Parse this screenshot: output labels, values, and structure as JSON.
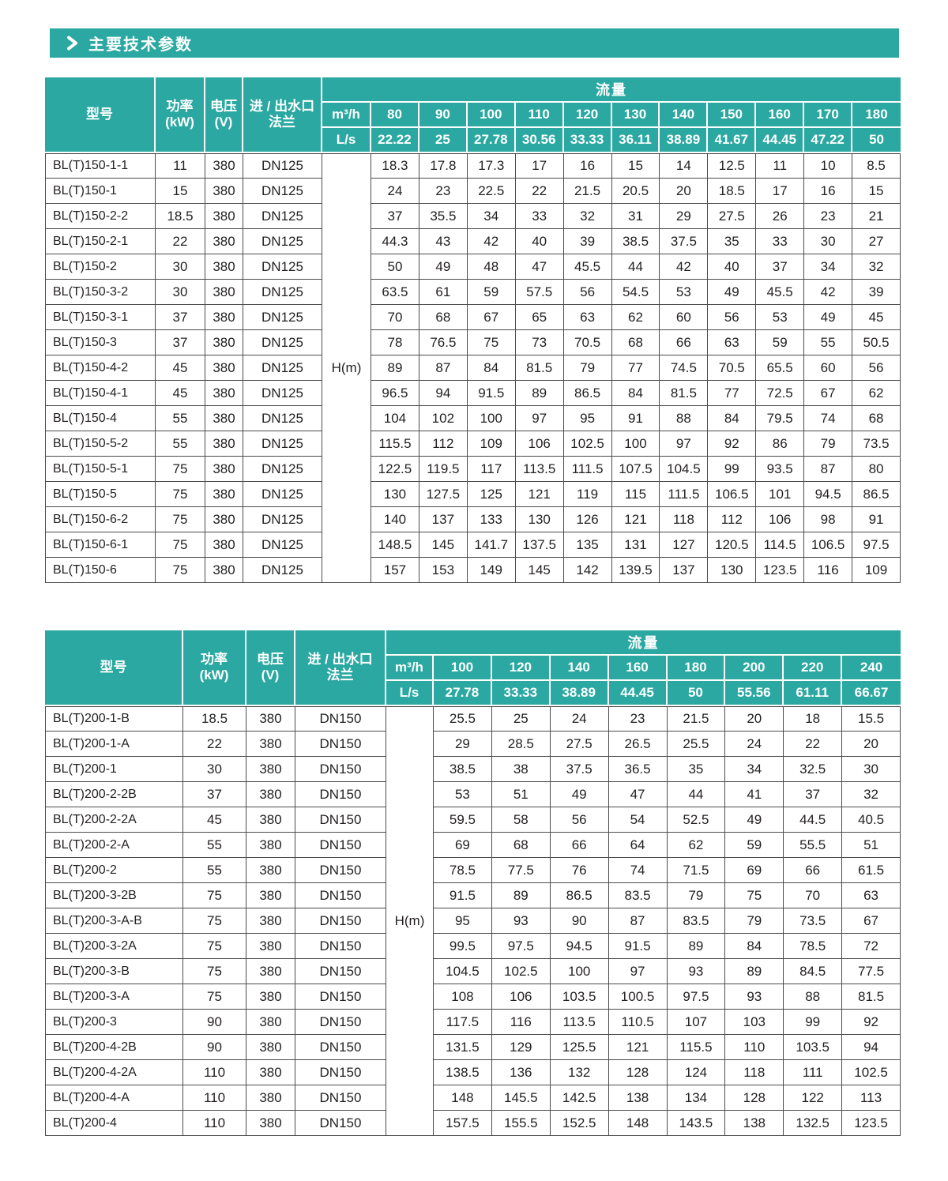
{
  "title": "主要技术参数",
  "colors": {
    "accent": "#2aa8a1",
    "border": "#4b4b4d",
    "text": "#231f20"
  },
  "tables": [
    {
      "header": {
        "model": "型号",
        "power": "功率\n(kW)",
        "voltage": "电压\n(V)",
        "flange": "进 / 出水口\n法兰",
        "flow": "流量",
        "unit_top": "m³/h",
        "unit_bottom": "L/s",
        "flow_top": [
          "80",
          "90",
          "100",
          "110",
          "120",
          "130",
          "140",
          "150",
          "160",
          "170",
          "180"
        ],
        "flow_bottom": [
          "22.22",
          "25",
          "27.78",
          "30.56",
          "33.33",
          "36.11",
          "38.89",
          "41.67",
          "44.45",
          "47.22",
          "50"
        ]
      },
      "head_unit": "H(m)",
      "rows": [
        {
          "model": "BL(T)150-1-1",
          "power": "11",
          "voltage": "380",
          "flange": "DN125",
          "values": [
            "18.3",
            "17.8",
            "17.3",
            "17",
            "16",
            "15",
            "14",
            "12.5",
            "11",
            "10",
            "8.5"
          ]
        },
        {
          "model": "BL(T)150-1",
          "power": "15",
          "voltage": "380",
          "flange": "DN125",
          "values": [
            "24",
            "23",
            "22.5",
            "22",
            "21.5",
            "20.5",
            "20",
            "18.5",
            "17",
            "16",
            "15"
          ]
        },
        {
          "model": "BL(T)150-2-2",
          "power": "18.5",
          "voltage": "380",
          "flange": "DN125",
          "values": [
            "37",
            "35.5",
            "34",
            "33",
            "32",
            "31",
            "29",
            "27.5",
            "26",
            "23",
            "21"
          ]
        },
        {
          "model": "BL(T)150-2-1",
          "power": "22",
          "voltage": "380",
          "flange": "DN125",
          "values": [
            "44.3",
            "43",
            "42",
            "40",
            "39",
            "38.5",
            "37.5",
            "35",
            "33",
            "30",
            "27"
          ]
        },
        {
          "model": "BL(T)150-2",
          "power": "30",
          "voltage": "380",
          "flange": "DN125",
          "values": [
            "50",
            "49",
            "48",
            "47",
            "45.5",
            "44",
            "42",
            "40",
            "37",
            "34",
            "32"
          ]
        },
        {
          "model": "BL(T)150-3-2",
          "power": "30",
          "voltage": "380",
          "flange": "DN125",
          "values": [
            "63.5",
            "61",
            "59",
            "57.5",
            "56",
            "54.5",
            "53",
            "49",
            "45.5",
            "42",
            "39"
          ]
        },
        {
          "model": "BL(T)150-3-1",
          "power": "37",
          "voltage": "380",
          "flange": "DN125",
          "values": [
            "70",
            "68",
            "67",
            "65",
            "63",
            "62",
            "60",
            "56",
            "53",
            "49",
            "45"
          ]
        },
        {
          "model": "BL(T)150-3",
          "power": "37",
          "voltage": "380",
          "flange": "DN125",
          "values": [
            "78",
            "76.5",
            "75",
            "73",
            "70.5",
            "68",
            "66",
            "63",
            "59",
            "55",
            "50.5"
          ]
        },
        {
          "model": "BL(T)150-4-2",
          "power": "45",
          "voltage": "380",
          "flange": "DN125",
          "values": [
            "89",
            "87",
            "84",
            "81.5",
            "79",
            "77",
            "74.5",
            "70.5",
            "65.5",
            "60",
            "56"
          ]
        },
        {
          "model": "BL(T)150-4-1",
          "power": "45",
          "voltage": "380",
          "flange": "DN125",
          "values": [
            "96.5",
            "94",
            "91.5",
            "89",
            "86.5",
            "84",
            "81.5",
            "77",
            "72.5",
            "67",
            "62"
          ]
        },
        {
          "model": "BL(T)150-4",
          "power": "55",
          "voltage": "380",
          "flange": "DN125",
          "values": [
            "104",
            "102",
            "100",
            "97",
            "95",
            "91",
            "88",
            "84",
            "79.5",
            "74",
            "68"
          ]
        },
        {
          "model": "BL(T)150-5-2",
          "power": "55",
          "voltage": "380",
          "flange": "DN125",
          "values": [
            "115.5",
            "112",
            "109",
            "106",
            "102.5",
            "100",
            "97",
            "92",
            "86",
            "79",
            "73.5"
          ]
        },
        {
          "model": "BL(T)150-5-1",
          "power": "75",
          "voltage": "380",
          "flange": "DN125",
          "values": [
            "122.5",
            "119.5",
            "117",
            "113.5",
            "111.5",
            "107.5",
            "104.5",
            "99",
            "93.5",
            "87",
            "80"
          ]
        },
        {
          "model": "BL(T)150-5",
          "power": "75",
          "voltage": "380",
          "flange": "DN125",
          "values": [
            "130",
            "127.5",
            "125",
            "121",
            "119",
            "115",
            "111.5",
            "106.5",
            "101",
            "94.5",
            "86.5"
          ]
        },
        {
          "model": "BL(T)150-6-2",
          "power": "75",
          "voltage": "380",
          "flange": "DN125",
          "values": [
            "140",
            "137",
            "133",
            "130",
            "126",
            "121",
            "118",
            "112",
            "106",
            "98",
            "91"
          ]
        },
        {
          "model": "BL(T)150-6-1",
          "power": "75",
          "voltage": "380",
          "flange": "DN125",
          "values": [
            "148.5",
            "145",
            "141.7",
            "137.5",
            "135",
            "131",
            "127",
            "120.5",
            "114.5",
            "106.5",
            "97.5"
          ]
        },
        {
          "model": "BL(T)150-6",
          "power": "75",
          "voltage": "380",
          "flange": "DN125",
          "values": [
            "157",
            "153",
            "149",
            "145",
            "142",
            "139.5",
            "137",
            "130",
            "123.5",
            "116",
            "109"
          ]
        }
      ]
    },
    {
      "header": {
        "model": "型号",
        "power": "功率\n(kW)",
        "voltage": "电压\n(V)",
        "flange": "进 / 出水口\n法兰",
        "flow": "流量",
        "unit_top": "m³/h",
        "unit_bottom": "L/s",
        "flow_top": [
          "100",
          "120",
          "140",
          "160",
          "180",
          "200",
          "220",
          "240"
        ],
        "flow_bottom": [
          "27.78",
          "33.33",
          "38.89",
          "44.45",
          "50",
          "55.56",
          "61.11",
          "66.67"
        ]
      },
      "head_unit": "H(m)",
      "rows": [
        {
          "model": "BL(T)200-1-B",
          "power": "18.5",
          "voltage": "380",
          "flange": "DN150",
          "values": [
            "25.5",
            "25",
            "24",
            "23",
            "21.5",
            "20",
            "18",
            "15.5"
          ]
        },
        {
          "model": "BL(T)200-1-A",
          "power": "22",
          "voltage": "380",
          "flange": "DN150",
          "values": [
            "29",
            "28.5",
            "27.5",
            "26.5",
            "25.5",
            "24",
            "22",
            "20"
          ]
        },
        {
          "model": "BL(T)200-1",
          "power": "30",
          "voltage": "380",
          "flange": "DN150",
          "values": [
            "38.5",
            "38",
            "37.5",
            "36.5",
            "35",
            "34",
            "32.5",
            "30"
          ]
        },
        {
          "model": "BL(T)200-2-2B",
          "power": "37",
          "voltage": "380",
          "flange": "DN150",
          "values": [
            "53",
            "51",
            "49",
            "47",
            "44",
            "41",
            "37",
            "32"
          ]
        },
        {
          "model": "BL(T)200-2-2A",
          "power": "45",
          "voltage": "380",
          "flange": "DN150",
          "values": [
            "59.5",
            "58",
            "56",
            "54",
            "52.5",
            "49",
            "44.5",
            "40.5"
          ]
        },
        {
          "model": "BL(T)200-2-A",
          "power": "55",
          "voltage": "380",
          "flange": "DN150",
          "values": [
            "69",
            "68",
            "66",
            "64",
            "62",
            "59",
            "55.5",
            "51"
          ]
        },
        {
          "model": "BL(T)200-2",
          "power": "55",
          "voltage": "380",
          "flange": "DN150",
          "values": [
            "78.5",
            "77.5",
            "76",
            "74",
            "71.5",
            "69",
            "66",
            "61.5"
          ]
        },
        {
          "model": "BL(T)200-3-2B",
          "power": "75",
          "voltage": "380",
          "flange": "DN150",
          "values": [
            "91.5",
            "89",
            "86.5",
            "83.5",
            "79",
            "75",
            "70",
            "63"
          ]
        },
        {
          "model": "BL(T)200-3-A-B",
          "power": "75",
          "voltage": "380",
          "flange": "DN150",
          "values": [
            "95",
            "93",
            "90",
            "87",
            "83.5",
            "79",
            "73.5",
            "67"
          ]
        },
        {
          "model": "BL(T)200-3-2A",
          "power": "75",
          "voltage": "380",
          "flange": "DN150",
          "values": [
            "99.5",
            "97.5",
            "94.5",
            "91.5",
            "89",
            "84",
            "78.5",
            "72"
          ]
        },
        {
          "model": "BL(T)200-3-B",
          "power": "75",
          "voltage": "380",
          "flange": "DN150",
          "values": [
            "104.5",
            "102.5",
            "100",
            "97",
            "93",
            "89",
            "84.5",
            "77.5"
          ]
        },
        {
          "model": "BL(T)200-3-A",
          "power": "75",
          "voltage": "380",
          "flange": "DN150",
          "values": [
            "108",
            "106",
            "103.5",
            "100.5",
            "97.5",
            "93",
            "88",
            "81.5"
          ]
        },
        {
          "model": "BL(T)200-3",
          "power": "90",
          "voltage": "380",
          "flange": "DN150",
          "values": [
            "117.5",
            "116",
            "113.5",
            "110.5",
            "107",
            "103",
            "99",
            "92"
          ]
        },
        {
          "model": "BL(T)200-4-2B",
          "power": "90",
          "voltage": "380",
          "flange": "DN150",
          "values": [
            "131.5",
            "129",
            "125.5",
            "121",
            "115.5",
            "110",
            "103.5",
            "94"
          ]
        },
        {
          "model": "BL(T)200-4-2A",
          "power": "110",
          "voltage": "380",
          "flange": "DN150",
          "values": [
            "138.5",
            "136",
            "132",
            "128",
            "124",
            "118",
            "111",
            "102.5"
          ]
        },
        {
          "model": "BL(T)200-4-A",
          "power": "110",
          "voltage": "380",
          "flange": "DN150",
          "values": [
            "148",
            "145.5",
            "142.5",
            "138",
            "134",
            "128",
            "122",
            "113"
          ]
        },
        {
          "model": "BL(T)200-4",
          "power": "110",
          "voltage": "380",
          "flange": "DN150",
          "values": [
            "157.5",
            "155.5",
            "152.5",
            "148",
            "143.5",
            "138",
            "132.5",
            "123.5"
          ]
        }
      ]
    }
  ]
}
